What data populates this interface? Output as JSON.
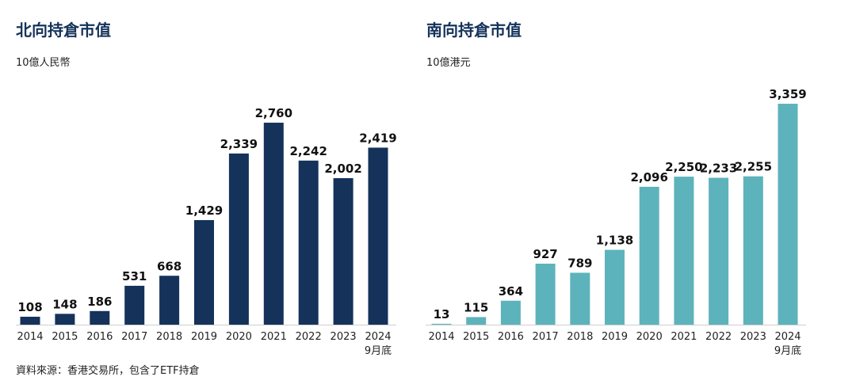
{
  "chart_data": [
    {
      "type": "bar",
      "title": "北向持倉市值",
      "ylabel": "10億人民幣",
      "categories": [
        "2014",
        "2015",
        "2016",
        "2017",
        "2018",
        "2019",
        "2020",
        "2021",
        "2022",
        "2023",
        "2024"
      ],
      "category_sublabels": [
        "",
        "",
        "",
        "",
        "",
        "",
        "",
        "",
        "",
        "",
        "9月底"
      ],
      "values": [
        108,
        148,
        186,
        531,
        668,
        1429,
        2339,
        2760,
        2242,
        2002,
        2419
      ],
      "value_labels": [
        "108",
        "148",
        "186",
        "531",
        "668",
        "1,429",
        "2,339",
        "2,760",
        "2,242",
        "2,002",
        "2,419"
      ],
      "ylim": [
        0,
        2900
      ],
      "color": "#14325a"
    },
    {
      "type": "bar",
      "title": "南向持倉市值",
      "ylabel": "10億港元",
      "categories": [
        "2014",
        "2015",
        "2016",
        "2017",
        "2018",
        "2019",
        "2020",
        "2021",
        "2022",
        "2023",
        "2024"
      ],
      "category_sublabels": [
        "",
        "",
        "",
        "",
        "",
        "",
        "",
        "",
        "",
        "",
        "9月底"
      ],
      "values": [
        13,
        115,
        364,
        927,
        789,
        1138,
        2096,
        2250,
        2233,
        2255,
        3359
      ],
      "value_labels": [
        "13",
        "115",
        "364",
        "927",
        "789",
        "1,138",
        "2,096",
        "2,250",
        "2,233",
        "2,255",
        "3,359"
      ],
      "ylim": [
        0,
        3359
      ],
      "color": "#5db3bb"
    }
  ],
  "source": "資料來源：香港交易所，包含了ETF持倉"
}
